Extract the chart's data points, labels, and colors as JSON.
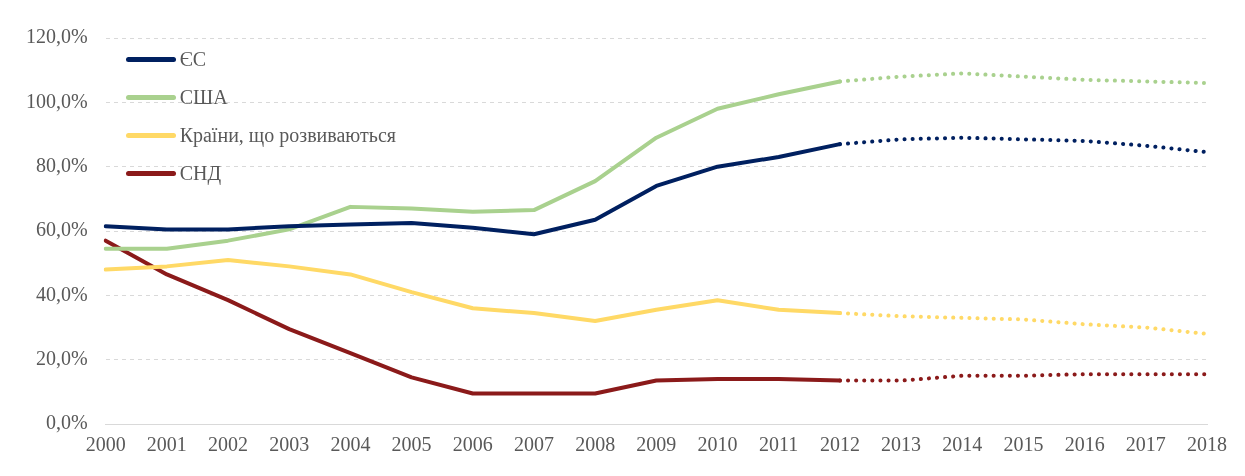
{
  "chart_data": {
    "type": "line",
    "categories": [
      "2000",
      "2001",
      "2002",
      "2003",
      "2004",
      "2005",
      "2006",
      "2007",
      "2008",
      "2009",
      "2010",
      "2011",
      "2012",
      "2013",
      "2014",
      "2015",
      "2016",
      "2017",
      "2018"
    ],
    "ylim": [
      0,
      120
    ],
    "yticks": [
      {
        "value": 0,
        "label": "0,0%"
      },
      {
        "value": 20,
        "label": "20,0%"
      },
      {
        "value": 40,
        "label": "40,0%"
      },
      {
        "value": 60,
        "label": "60,0%"
      },
      {
        "value": 80,
        "label": "80,0%"
      },
      {
        "value": 100,
        "label": "100,0%"
      },
      {
        "value": 120,
        "label": "120,0%"
      }
    ],
    "grid": "y",
    "legend": "top left",
    "marker": "none",
    "series": [
      {
        "name": "ЄС",
        "color": "#002060",
        "line_style": "solid",
        "values": [
          61.5,
          60.5,
          60.5,
          61.5,
          62,
          62.5,
          61,
          59,
          63.5,
          74,
          80,
          83,
          87,
          null,
          null,
          null,
          null,
          null,
          null
        ]
      },
      {
        "name": "США",
        "color": "#a9d18e",
        "line_style": "solid",
        "values": [
          54.5,
          54.5,
          57,
          60.5,
          67.5,
          67,
          66,
          66.5,
          75.5,
          89,
          98,
          102.5,
          106.5,
          null,
          null,
          null,
          null,
          null,
          null
        ]
      },
      {
        "name": "Країни, що розвиваються",
        "color": "#ffd966",
        "line_style": "solid",
        "values": [
          48,
          49,
          51,
          49,
          46.5,
          41,
          36,
          34.5,
          32,
          35.5,
          38.5,
          35.5,
          34.5,
          null,
          null,
          null,
          null,
          null,
          null
        ]
      },
      {
        "name": "СНД",
        "color": "#8b1a1a",
        "line_style": "solid",
        "values": [
          57,
          46.5,
          38.5,
          29.5,
          22,
          14.5,
          9.5,
          9.5,
          9.5,
          13.5,
          14,
          14,
          13.5,
          null,
          null,
          null,
          null,
          null,
          null
        ]
      },
      {
        "color": "#002060",
        "line_style": "dotted",
        "values": [
          null,
          null,
          null,
          null,
          null,
          null,
          null,
          null,
          null,
          null,
          null,
          null,
          87,
          88.5,
          89,
          88.5,
          88,
          86.5,
          84.5
        ]
      },
      {
        "color": "#a9d18e",
        "line_style": "dotted",
        "values": [
          null,
          null,
          null,
          null,
          null,
          null,
          null,
          null,
          null,
          null,
          null,
          null,
          106.5,
          108,
          109,
          108,
          107,
          106.5,
          106
        ]
      },
      {
        "color": "#ffd966",
        "line_style": "dotted",
        "values": [
          null,
          null,
          null,
          null,
          null,
          null,
          null,
          null,
          null,
          null,
          null,
          null,
          34.5,
          33.5,
          33,
          32.5,
          31,
          30,
          28
        ]
      },
      {
        "color": "#8b1a1a",
        "line_style": "dotted",
        "values": [
          null,
          null,
          null,
          null,
          null,
          null,
          null,
          null,
          null,
          null,
          null,
          null,
          13.5,
          13.5,
          15,
          15,
          15.5,
          15.5,
          15.5
        ]
      }
    ]
  }
}
